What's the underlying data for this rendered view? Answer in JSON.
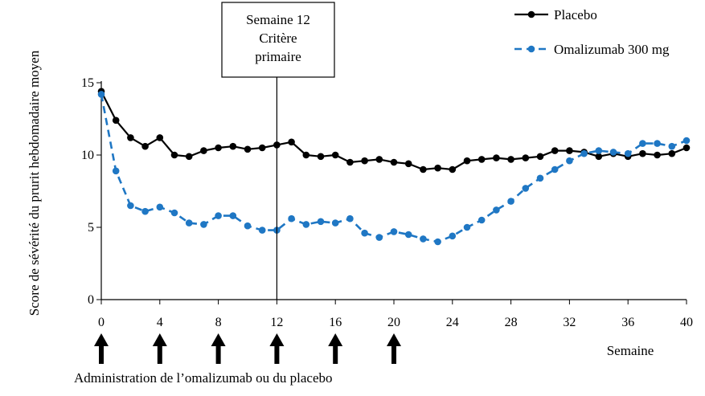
{
  "chart_data": {
    "type": "line",
    "ylabel": "Score de sévérité du prurit hebdomadaire moyen",
    "xlabel": "Semaine",
    "xlim": [
      0,
      40
    ],
    "ylim": [
      0,
      15
    ],
    "x_ticks": [
      0,
      4,
      8,
      12,
      16,
      20,
      24,
      28,
      32,
      36,
      40
    ],
    "y_ticks": [
      0,
      5,
      10,
      15
    ],
    "grid": false,
    "legend_position": "top-right",
    "series": [
      {
        "name": "Placebo",
        "color": "#000000",
        "style": "solid",
        "x": [
          0,
          1,
          2,
          3,
          4,
          5,
          6,
          7,
          8,
          9,
          10,
          11,
          12,
          13,
          14,
          15,
          16,
          17,
          18,
          19,
          20,
          21,
          22,
          23,
          24,
          25,
          26,
          27,
          28,
          29,
          30,
          31,
          32,
          33,
          34,
          35,
          36,
          37,
          38,
          39,
          40
        ],
        "values": [
          14.4,
          12.4,
          11.2,
          10.6,
          11.2,
          10.0,
          9.9,
          10.3,
          10.5,
          10.6,
          10.4,
          10.5,
          10.7,
          10.9,
          10.0,
          9.9,
          10.0,
          9.5,
          9.6,
          9.7,
          9.5,
          9.4,
          9.0,
          9.1,
          9.0,
          9.6,
          9.7,
          9.8,
          9.7,
          9.8,
          9.9,
          10.3,
          10.3,
          10.2,
          9.9,
          10.1,
          9.9,
          10.1,
          10.0,
          10.1,
          10.5
        ]
      },
      {
        "name": "Omalizumab 300 mg",
        "color": "#1f77c4",
        "style": "dashed",
        "x": [
          0,
          1,
          2,
          3,
          4,
          5,
          6,
          7,
          8,
          9,
          10,
          11,
          12,
          13,
          14,
          15,
          16,
          17,
          18,
          19,
          20,
          21,
          22,
          23,
          24,
          25,
          26,
          27,
          28,
          29,
          30,
          31,
          32,
          33,
          34,
          35,
          36,
          37,
          38,
          39,
          40
        ],
        "values": [
          14.2,
          8.9,
          6.5,
          6.1,
          6.4,
          6.0,
          5.3,
          5.2,
          5.8,
          5.8,
          5.1,
          4.8,
          4.8,
          5.6,
          5.2,
          5.4,
          5.3,
          5.6,
          4.6,
          4.3,
          4.7,
          4.5,
          4.2,
          4.0,
          4.4,
          5.0,
          5.5,
          6.2,
          6.8,
          7.7,
          8.4,
          9.0,
          9.6,
          10.1,
          10.3,
          10.2,
          10.1,
          10.8,
          10.8,
          10.6,
          11.0
        ]
      }
    ],
    "reference_line": {
      "x": 12,
      "label_lines": [
        "Semaine 12",
        "Critère",
        "primaire"
      ]
    },
    "dosing_weeks": [
      0,
      4,
      8,
      12,
      16,
      20
    ],
    "dosing_caption": "Administration de l’omalizumab ou du placebo"
  }
}
